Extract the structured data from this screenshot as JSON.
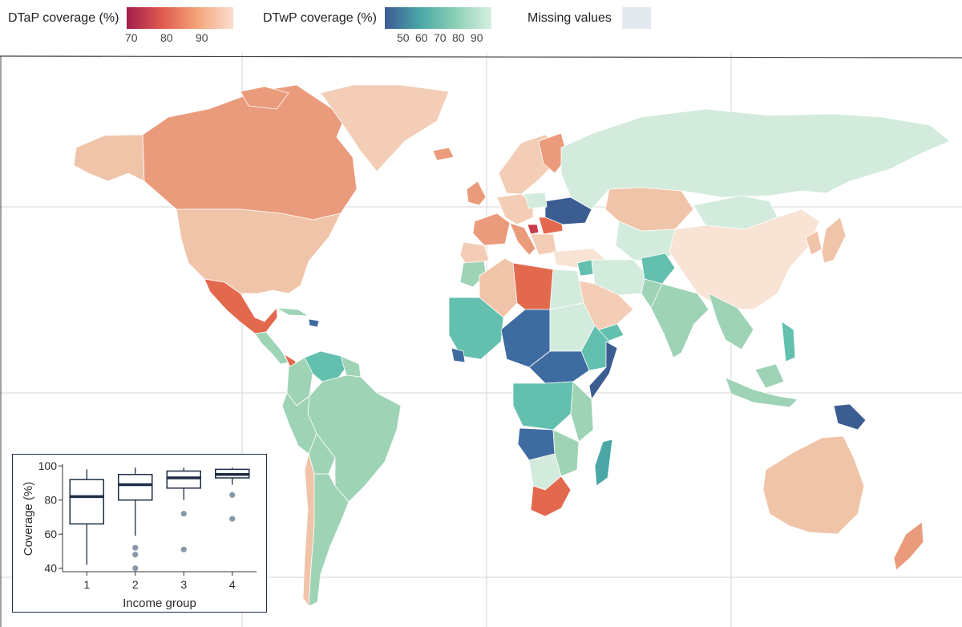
{
  "legend": {
    "dtap": {
      "title": "DTaP coverage (%)",
      "ticks": [
        "70",
        "80",
        "90"
      ],
      "colors": [
        "#a21e4a",
        "#e05a4f",
        "#f3a57a",
        "#faded0"
      ]
    },
    "dtwp": {
      "title": "DTwP coverage (%)",
      "ticks": [
        "50",
        "60",
        "70",
        "80",
        "90"
      ],
      "colors": [
        "#3d5a94",
        "#4aa7a6",
        "#8cd0b5",
        "#d7efe1"
      ]
    },
    "missing": {
      "label": "Missing values",
      "color": "#e4e8ef"
    }
  },
  "map_colors": {
    "ocean": "#ffffff",
    "grid": "#d4d4d4",
    "border": "#ffffff",
    "dtap_orange": "#ea9b7c",
    "dtap_light": "#f3cdb5",
    "dtap_pale": "#f8e3d5",
    "dtap_red": "#e3694e",
    "dtap_crimson": "#c93a4a",
    "dtwp_pale": "#d3ebdc",
    "dtwp_green": "#9fd3b5",
    "dtwp_teal": "#63bfae",
    "dtwp_blue": "#3f6ca0",
    "dtwp_navy": "#3b5d92"
  },
  "chart_data": {
    "type": "boxplot",
    "xlabel": "Income group",
    "ylabel": "Coverage (%)",
    "ylim": [
      38,
      101
    ],
    "yticks": [
      40,
      60,
      80,
      100
    ],
    "categories": [
      "1",
      "2",
      "3",
      "4"
    ],
    "boxes": [
      {
        "group": "1",
        "min": 42,
        "q1": 66,
        "median": 82,
        "q3": 92,
        "max": 98,
        "outliers": []
      },
      {
        "group": "2",
        "min": 59,
        "q1": 80,
        "median": 89,
        "q3": 95,
        "max": 99,
        "outliers": [
          52,
          48,
          40
        ]
      },
      {
        "group": "3",
        "min": 80,
        "q1": 87,
        "median": 93,
        "q3": 97,
        "max": 99,
        "outliers": [
          72,
          51
        ]
      },
      {
        "group": "4",
        "min": 89,
        "q1": 93,
        "median": 95,
        "q3": 98,
        "max": 99,
        "outliers": [
          83,
          69
        ]
      }
    ],
    "grid": false
  }
}
